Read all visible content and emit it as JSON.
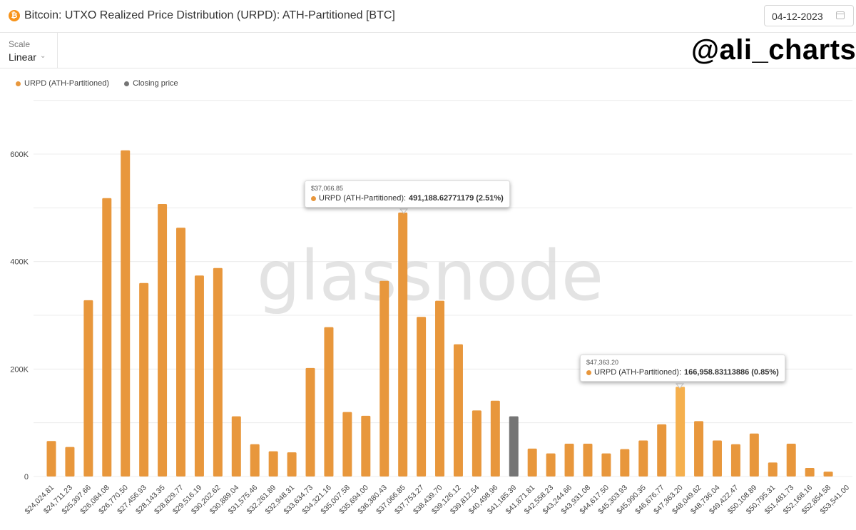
{
  "header": {
    "title": "Bitcoin: UTXO Realized Price Distribution (URPD): ATH-Partitioned [BTC]",
    "date": "04-12-2023"
  },
  "toolbar": {
    "scale_label": "Scale",
    "scale_value": "Linear"
  },
  "handle": "@ali_charts",
  "watermark": "glassnode",
  "colors": {
    "bar": "#e8973c",
    "bar_highlight": "#f5b04e",
    "closing": "#757575",
    "grid": "#ececec",
    "brand": "#f7931a"
  },
  "legend": [
    {
      "label": "URPD (ATH-Partitioned)",
      "color": "#e8973c"
    },
    {
      "label": "Closing price",
      "color": "#757575"
    }
  ],
  "tooltips": [
    {
      "date": "$37,066.85",
      "series": "URPD (ATH-Partitioned):",
      "value": "491,188.62771179 (2.51%)"
    },
    {
      "date": "$47,363.20",
      "series": "URPD (ATH-Partitioned):",
      "value": "166,958.83113886 (0.85%)"
    }
  ],
  "chart_data": {
    "type": "bar",
    "title": "Bitcoin: UTXO Realized Price Distribution (URPD): ATH-Partitioned [BTC]",
    "xlabel": "",
    "ylabel": "",
    "ylim": [
      0,
      700000
    ],
    "yticks": [
      0,
      200000,
      400000,
      600000
    ],
    "ytick_labels": [
      "0",
      "200K",
      "400K",
      "600K"
    ],
    "grid": true,
    "legend_position": "top-left",
    "categories": [
      "$24,024.81",
      "$24,711.23",
      "$25,397.66",
      "$26,084.08",
      "$26,770.50",
      "$27,456.93",
      "$28,143.35",
      "$28,829.77",
      "$29,516.19",
      "$30,202.62",
      "$30,889.04",
      "$31,575.46",
      "$32,261.89",
      "$32,948.31",
      "$33,634.73",
      "$34,321.16",
      "$35,007.58",
      "$35,694.00",
      "$36,380.43",
      "$37,066.85",
      "$37,753.27",
      "$38,439.70",
      "$39,126.12",
      "$39,812.54",
      "$40,498.96",
      "$41,185.39",
      "$41,871.81",
      "$42,558.23",
      "$43,244.66",
      "$43,931.08",
      "$44,617.50",
      "$45,303.93",
      "$45,990.35",
      "$46,676.77",
      "$47,363.20",
      "$48,049.62",
      "$48,736.04",
      "$49,422.47",
      "$50,108.89",
      "$50,795.31",
      "$51,481.73",
      "$52,168.16",
      "$52,854.58",
      "$53,541.00"
    ],
    "series": [
      {
        "name": "URPD (ATH-Partitioned)",
        "values": [
          66000,
          55000,
          328000,
          518000,
          607000,
          360000,
          507000,
          463000,
          374000,
          388000,
          112000,
          60000,
          47000,
          45000,
          202000,
          278000,
          120000,
          113000,
          364000,
          491188.63,
          297000,
          327000,
          246000,
          123000,
          141000,
          0,
          52000,
          43000,
          61000,
          61000,
          43000,
          51000,
          67000,
          97000,
          166958.83,
          103000,
          67000,
          60000,
          80000,
          26000,
          61000,
          16000,
          9000,
          0
        ]
      },
      {
        "name": "Closing price",
        "values": [
          0,
          0,
          0,
          0,
          0,
          0,
          0,
          0,
          0,
          0,
          0,
          0,
          0,
          0,
          0,
          0,
          0,
          0,
          0,
          0,
          0,
          0,
          0,
          0,
          0,
          112000,
          0,
          0,
          0,
          0,
          0,
          0,
          0,
          0,
          0,
          0,
          0,
          0,
          0,
          0,
          0,
          0,
          0,
          0
        ]
      }
    ],
    "highlight_category": "$47,363.20"
  }
}
